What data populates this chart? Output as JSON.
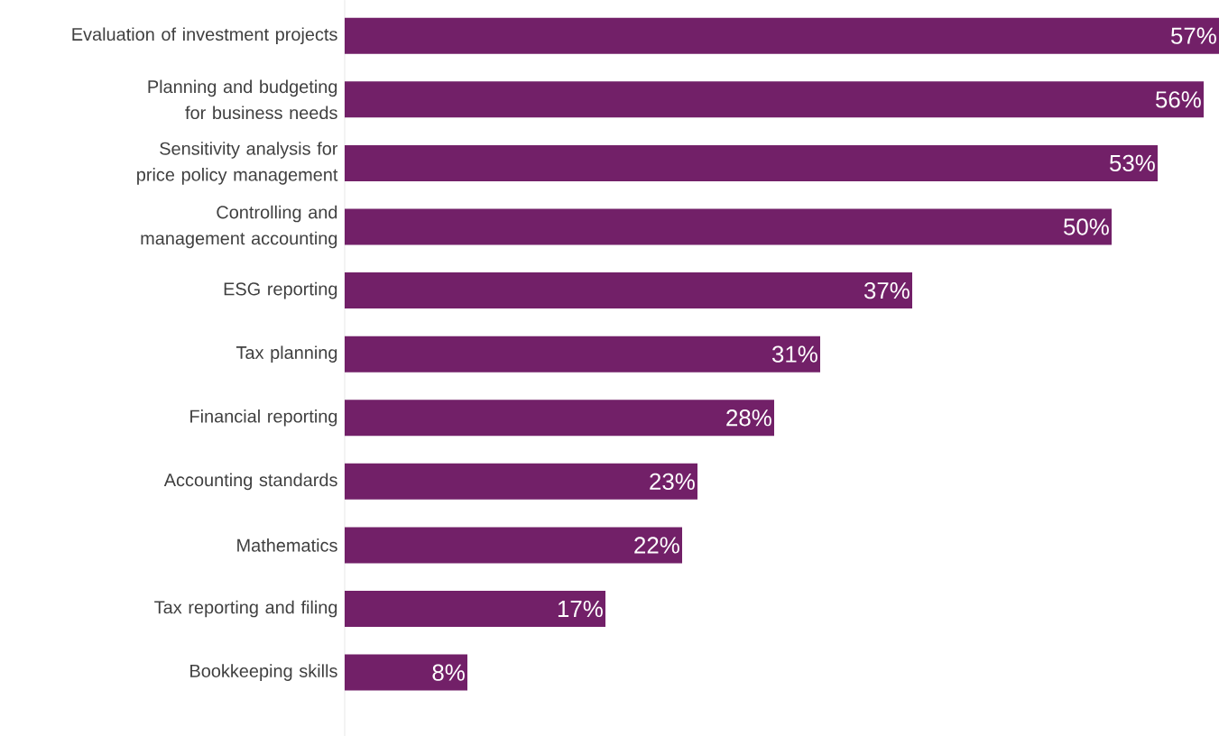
{
  "chart_data": {
    "type": "bar",
    "orientation": "horizontal",
    "color": "#722068",
    "categories": [
      "Evaluation of investment projects",
      "Planning and budgeting for business needs",
      "Sensitivity analysis for price policy management",
      "Controlling and management accounting",
      "ESG reporting",
      "Tax planning",
      "Financial reporting",
      "Accounting standards",
      "Mathematics",
      "Tax reporting and filing",
      "Bookkeeping skills"
    ],
    "values": [
      57,
      56,
      53,
      50,
      37,
      31,
      28,
      23,
      22,
      17,
      8
    ],
    "value_labels": [
      "57%",
      "56%",
      "53%",
      "50%",
      "37%",
      "31%",
      "28%",
      "23%",
      "22%",
      "17%",
      "8%"
    ]
  }
}
